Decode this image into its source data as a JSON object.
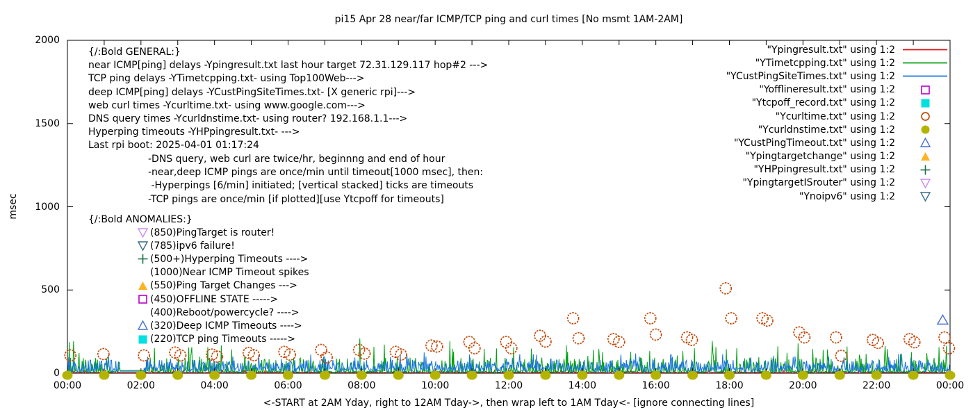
{
  "title": "pi15 Apr 28  near/far ICMP/TCP ping and curl times [No msmt 1AM-2AM]",
  "ylabel": "msec",
  "xlabel": "<-START at 2AM Yday, right to 12AM Tday->, then wrap left to 1AM Tday<- [ignore connecting lines]",
  "colors": {
    "red": "#e01010",
    "green": "#00a010",
    "blue": "#1874dc",
    "magenta": "#bb00cc",
    "cyan": "#00e0e0",
    "orange_circle": "#c44a0a",
    "olive": "#b4b400",
    "tri_blue": "#4671d5",
    "tri_orange": "#ffb224",
    "plus_green": "#1a7045",
    "violet": "#c98cf5",
    "teal_tri": "#3a6c88",
    "axis": "#000000"
  },
  "legend": [
    {
      "label": "\"Ypingresult.txt\" using 1:2",
      "marker": "line",
      "color": "red"
    },
    {
      "label": "\"YTimetcpping.txt\" using 1:2",
      "marker": "line",
      "color": "green"
    },
    {
      "label": "\"YCustPingSiteTimes.txt\" using 1:2",
      "marker": "line",
      "color": "blue"
    },
    {
      "label": "\"Yofflineresult.txt\" using 1:2",
      "marker": "sq-open",
      "color": "magenta"
    },
    {
      "label": "\"Ytcpoff_record.txt\" using 1:2",
      "marker": "sq-fill",
      "color": "cyan"
    },
    {
      "label": "\"Ycurltime.txt\" using 1:2",
      "marker": "circ-open",
      "color": "orange_circle"
    },
    {
      "label": "\"Ycurldnstime.txt\" using 1:2",
      "marker": "circ-fill",
      "color": "olive"
    },
    {
      "label": "\"YCustPingTimeout.txt\" using 1:2",
      "marker": "tri-up-open",
      "color": "tri_blue"
    },
    {
      "label": "\"Ypingtargetchange\" using 1:2",
      "marker": "tri-up-fill",
      "color": "tri_orange"
    },
    {
      "label": "\"YHPpingresult.txt\" using 1:2",
      "marker": "plus",
      "color": "plus_green"
    },
    {
      "label": "\"YpingtargetISrouter\" using 1:2",
      "marker": "tri-down-open",
      "color": "violet"
    },
    {
      "label": "\"Ynoipv6\" using 1:2",
      "marker": "tri-down-open",
      "color": "teal_tri"
    }
  ],
  "annotations": {
    "general_lines": [
      "{/:Bold GENERAL:}",
      "near ICMP[ping] delays -Ypingresult.txt last hour target 72.31.129.117 hop#2 --->",
      "TCP ping delays -YTimetcpping.txt- using Top100Web--->",
      "deep ICMP[ping] delays -YCustPingSiteTimes.txt- [X generic rpi]--->",
      "web curl times -Ycurltime.txt- using www.google.com--->",
      "DNS query times -Ycurldnstime.txt- using router? 192.168.1.1--->",
      "Hyperping timeouts -YHPpingresult.txt- --->",
      "Last rpi boot: 2025-04-01 01:17:24"
    ],
    "notes_lines": [
      "-DNS query, web curl are twice/hr, beginnng and end of hour",
      "-near,deep ICMP pings are once/min until timeout[1000 msec], then:",
      " -Hyperpings [6/min] initiated; [vertical stacked] ticks are timeouts",
      "-TCP pings are once/min [if plotted][use Ytcpoff for timeouts]"
    ],
    "anomalies_header": "{/:Bold ANOMALIES:}",
    "anomalies": [
      {
        "marker": "tri-down-open",
        "color": "violet",
        "text": "(850)PingTarget is router!"
      },
      {
        "marker": "tri-down-open",
        "color": "teal_tri",
        "text": "(785)ipv6 failure!"
      },
      {
        "marker": "plus",
        "color": "plus_green",
        "text": "(500+)Hyperping Timeouts ---->"
      },
      {
        "marker": null,
        "color": null,
        "text": "(1000)Near ICMP Timeout spikes"
      },
      {
        "marker": "tri-up-fill",
        "color": "tri_orange",
        "text": "(550)Ping Target Changes --->"
      },
      {
        "marker": "sq-open",
        "color": "magenta",
        "text": "(450)OFFLINE STATE ----->"
      },
      {
        "marker": null,
        "color": null,
        "text": "(400)Reboot/powercycle? ---->"
      },
      {
        "marker": "tri-up-open",
        "color": "tri_blue",
        "text": "(320)Deep ICMP Timeouts ---->"
      },
      {
        "marker": "sq-fill",
        "color": "cyan",
        "text": "(220)TCP ping Timeouts ----->"
      }
    ]
  },
  "chart_data": {
    "type": "line",
    "title": "pi15 Apr 28  near/far ICMP/TCP ping and curl times [No msmt 1AM-2AM]",
    "xlabel": "<-START at 2AM Yday, right to 12AM Tday->, then wrap left to 1AM Tday<- [ignore connecting lines]",
    "ylabel": "msec",
    "x_axis": {
      "tick_labels": [
        "00:00",
        "02:00",
        "04:00",
        "06:00",
        "08:00",
        "10:00",
        "12:00",
        "14:00",
        "16:00",
        "18:00",
        "20:00",
        "22:00",
        "00:00"
      ],
      "hours_span": 24,
      "minor_tick_every_hours": 1
    },
    "y_axis": {
      "ticks": [
        0,
        500,
        1000,
        1500,
        2000
      ],
      "lim": [
        0,
        2000
      ]
    },
    "grid": false,
    "legend_position": "top-right-inside",
    "gap_hours": [
      1.42,
      2.08
    ],
    "noise_seed": 42,
    "series": [
      {
        "name": "Ypingresult",
        "kind": "noise-line",
        "color": "red",
        "base": [
          2,
          7
        ],
        "spike_p": 0.05,
        "spike": [
          9,
          22
        ],
        "gap_value": 4,
        "spikes": []
      },
      {
        "name": "YTimetcpping",
        "kind": "noise-line",
        "color": "green",
        "base": [
          3,
          15
        ],
        "mid_p": 0.22,
        "mid": [
          25,
          95
        ],
        "high_p": 0.03,
        "high": [
          95,
          200
        ],
        "gap_value": 17,
        "spikes": [
          [
            3.3,
            155
          ],
          [
            7.95,
            209
          ],
          [
            8.62,
            172
          ],
          [
            10.5,
            130
          ],
          [
            12.62,
            148
          ],
          [
            14.3,
            140
          ],
          [
            17.05,
            150
          ],
          [
            18.2,
            150
          ],
          [
            20.55,
            140
          ],
          [
            22.3,
            145
          ],
          [
            23.9,
            165
          ]
        ]
      },
      {
        "name": "YCustPingSiteTimes",
        "kind": "noise-line",
        "color": "blue",
        "base": [
          6,
          36
        ],
        "mid_p": 0.35,
        "mid": [
          35,
          80
        ],
        "high_p": 0.03,
        "high": [
          80,
          120
        ],
        "gap_value": 12,
        "spikes": [
          [
            5.2,
            110
          ],
          [
            9.7,
            125
          ],
          [
            12.3,
            115
          ],
          [
            16.4,
            110
          ],
          [
            19.2,
            105
          ]
        ]
      },
      {
        "name": "Ycurltime",
        "kind": "scatter",
        "marker": "circ-open",
        "color": "orange_circle",
        "points": [
          [
            0.08,
            107
          ],
          [
            0.98,
            115
          ],
          [
            2.08,
            107
          ],
          [
            2.93,
            124
          ],
          [
            3.07,
            107
          ],
          [
            3.93,
            112
          ],
          [
            4.07,
            100
          ],
          [
            4.93,
            122
          ],
          [
            5.07,
            108
          ],
          [
            5.9,
            128
          ],
          [
            6.05,
            112
          ],
          [
            6.9,
            140
          ],
          [
            7.05,
            95
          ],
          [
            7.93,
            140
          ],
          [
            8.08,
            118
          ],
          [
            8.93,
            128
          ],
          [
            9.07,
            112
          ],
          [
            9.9,
            166
          ],
          [
            10.05,
            160
          ],
          [
            10.93,
            188
          ],
          [
            11.07,
            150
          ],
          [
            11.93,
            188
          ],
          [
            12.07,
            150
          ],
          [
            12.85,
            225
          ],
          [
            13.0,
            190
          ],
          [
            13.75,
            330
          ],
          [
            13.9,
            210
          ],
          [
            14.85,
            205
          ],
          [
            15.0,
            188
          ],
          [
            15.85,
            330
          ],
          [
            16.0,
            232
          ],
          [
            16.85,
            215
          ],
          [
            16.98,
            200
          ],
          [
            17.9,
            510
          ],
          [
            18.05,
            330
          ],
          [
            18.9,
            330
          ],
          [
            19.03,
            316
          ],
          [
            19.9,
            245
          ],
          [
            20.04,
            215
          ],
          [
            20.9,
            215
          ],
          [
            21.04,
            105
          ],
          [
            21.9,
            200
          ],
          [
            22.04,
            182
          ],
          [
            22.9,
            205
          ],
          [
            23.03,
            186
          ],
          [
            23.85,
            215
          ],
          [
            23.97,
            150
          ]
        ]
      },
      {
        "name": "Ycurldnstime",
        "kind": "scatter",
        "marker": "circ-fill",
        "color": "olive",
        "points": [
          [
            0,
            0
          ],
          [
            1,
            0
          ],
          [
            2,
            0
          ],
          [
            3,
            0
          ],
          [
            4,
            0
          ],
          [
            5,
            0
          ],
          [
            6,
            0
          ],
          [
            7,
            0
          ],
          [
            8,
            0
          ],
          [
            9,
            0
          ],
          [
            10,
            0
          ],
          [
            11,
            0
          ],
          [
            12,
            0
          ],
          [
            13,
            0
          ],
          [
            14,
            0
          ],
          [
            15,
            0
          ],
          [
            16,
            0
          ],
          [
            17,
            0
          ],
          [
            18,
            0
          ],
          [
            19,
            0
          ],
          [
            20,
            0
          ],
          [
            21,
            0
          ],
          [
            22,
            0
          ],
          [
            23,
            0
          ],
          [
            24,
            0
          ]
        ]
      },
      {
        "name": "YCustPingTimeout",
        "kind": "scatter",
        "marker": "tri-up-open",
        "color": "tri_blue",
        "points": [
          [
            23.8,
            320
          ]
        ]
      }
    ]
  }
}
